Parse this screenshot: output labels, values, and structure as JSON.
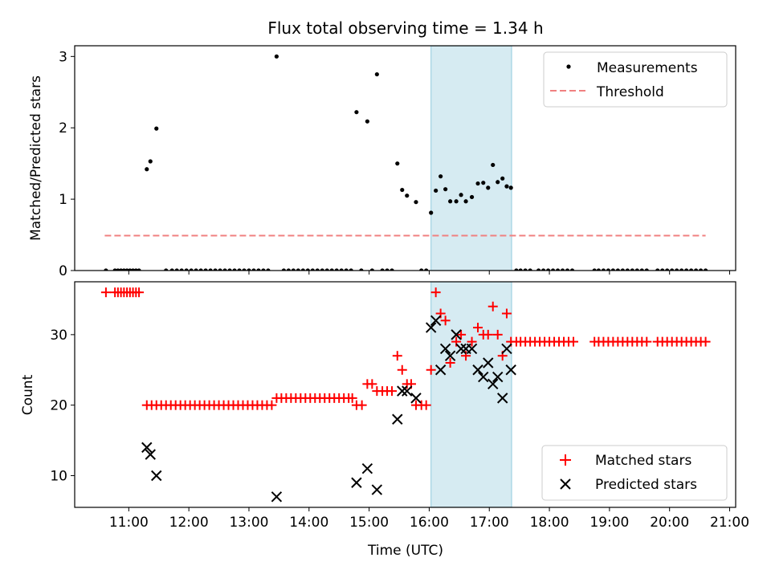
{
  "title": "Flux total observing time = 1.34 h",
  "xlabel": "Time (UTC)",
  "xticks": [
    "11:00",
    "12:00",
    "13:00",
    "14:00",
    "15:00",
    "16:00",
    "17:00",
    "18:00",
    "19:00",
    "20:00",
    "21:00"
  ],
  "chart_data": [
    {
      "type": "scatter",
      "ylabel": "Matched/Predicted stars",
      "ylim": [
        0,
        3.15
      ],
      "yticks": [
        0,
        1,
        2,
        3
      ],
      "xlim": [
        10.1,
        21.1
      ],
      "shaded_interval": [
        16.03,
        17.37
      ],
      "threshold": {
        "name": "Threshold",
        "value": 0.49,
        "x": [
          10.6,
          20.6
        ],
        "color": "#f08080"
      },
      "series": [
        {
          "name": "Measurements",
          "color": "#000000",
          "marker": "dot",
          "points": [
            [
              10.62,
              0
            ],
            [
              10.77,
              0
            ],
            [
              10.82,
              0
            ],
            [
              10.87,
              0
            ],
            [
              10.92,
              0
            ],
            [
              10.97,
              0
            ],
            [
              11.02,
              0
            ],
            [
              11.07,
              0
            ],
            [
              11.12,
              0
            ],
            [
              11.17,
              0
            ],
            [
              11.3,
              1.42
            ],
            [
              11.36,
              1.53
            ],
            [
              11.46,
              1.99
            ],
            [
              11.62,
              0
            ],
            [
              11.72,
              0
            ],
            [
              11.8,
              0
            ],
            [
              11.88,
              0
            ],
            [
              11.96,
              0
            ],
            [
              12.04,
              0
            ],
            [
              12.12,
              0
            ],
            [
              12.2,
              0
            ],
            [
              12.28,
              0
            ],
            [
              12.36,
              0
            ],
            [
              12.44,
              0
            ],
            [
              12.52,
              0
            ],
            [
              12.6,
              0
            ],
            [
              12.68,
              0
            ],
            [
              12.76,
              0
            ],
            [
              12.84,
              0
            ],
            [
              12.92,
              0
            ],
            [
              13.0,
              0
            ],
            [
              13.08,
              0
            ],
            [
              13.16,
              0
            ],
            [
              13.24,
              0
            ],
            [
              13.32,
              0
            ],
            [
              13.46,
              3.0
            ],
            [
              13.58,
              0
            ],
            [
              13.66,
              0
            ],
            [
              13.74,
              0
            ],
            [
              13.82,
              0
            ],
            [
              13.9,
              0
            ],
            [
              13.98,
              0
            ],
            [
              14.06,
              0
            ],
            [
              14.14,
              0
            ],
            [
              14.22,
              0
            ],
            [
              14.3,
              0
            ],
            [
              14.38,
              0
            ],
            [
              14.46,
              0
            ],
            [
              14.54,
              0
            ],
            [
              14.62,
              0
            ],
            [
              14.7,
              0
            ],
            [
              14.79,
              2.22
            ],
            [
              14.87,
              0
            ],
            [
              14.97,
              2.09
            ],
            [
              15.05,
              0
            ],
            [
              15.13,
              2.75
            ],
            [
              15.22,
              0
            ],
            [
              15.3,
              0
            ],
            [
              15.38,
              0
            ],
            [
              15.47,
              1.5
            ],
            [
              15.55,
              1.13
            ],
            [
              15.63,
              1.05
            ],
            [
              15.78,
              0.96
            ],
            [
              15.87,
              0
            ],
            [
              15.95,
              0
            ],
            [
              16.03,
              0.81
            ],
            [
              16.11,
              1.12
            ],
            [
              16.19,
              1.32
            ],
            [
              16.27,
              1.14
            ],
            [
              16.35,
              0.97
            ],
            [
              16.45,
              0.97
            ],
            [
              16.53,
              1.06
            ],
            [
              16.61,
              0.97
            ],
            [
              16.71,
              1.03
            ],
            [
              16.81,
              1.22
            ],
            [
              16.9,
              1.23
            ],
            [
              16.98,
              1.16
            ],
            [
              17.06,
              1.48
            ],
            [
              17.14,
              1.24
            ],
            [
              17.22,
              1.29
            ],
            [
              17.29,
              1.18
            ],
            [
              17.36,
              1.16
            ],
            [
              17.45,
              0
            ],
            [
              17.52,
              0
            ],
            [
              17.6,
              0
            ],
            [
              17.68,
              0
            ],
            [
              17.82,
              0
            ],
            [
              17.9,
              0
            ],
            [
              17.98,
              0
            ],
            [
              18.06,
              0
            ],
            [
              18.14,
              0
            ],
            [
              18.22,
              0
            ],
            [
              18.3,
              0
            ],
            [
              18.38,
              0
            ],
            [
              18.75,
              0
            ],
            [
              18.82,
              0
            ],
            [
              18.9,
              0
            ],
            [
              18.98,
              0
            ],
            [
              19.06,
              0
            ],
            [
              19.14,
              0
            ],
            [
              19.22,
              0
            ],
            [
              19.3,
              0
            ],
            [
              19.38,
              0
            ],
            [
              19.46,
              0
            ],
            [
              19.54,
              0
            ],
            [
              19.62,
              0
            ],
            [
              19.8,
              0
            ],
            [
              19.88,
              0
            ],
            [
              19.96,
              0
            ],
            [
              20.04,
              0
            ],
            [
              20.12,
              0
            ],
            [
              20.2,
              0
            ],
            [
              20.28,
              0
            ],
            [
              20.36,
              0
            ],
            [
              20.44,
              0
            ],
            [
              20.52,
              0
            ],
            [
              20.6,
              0
            ]
          ]
        }
      ],
      "legend": "upper right",
      "grid": false
    },
    {
      "type": "scatter",
      "ylabel": "Count",
      "ylim": [
        5.5,
        37.5
      ],
      "yticks": [
        10,
        20,
        30
      ],
      "xlim": [
        10.1,
        21.1
      ],
      "shaded_interval": [
        16.03,
        17.37
      ],
      "legend": "lower right",
      "grid": false,
      "series": [
        {
          "name": "Matched stars",
          "color": "#ff0000",
          "marker": "plus",
          "points": [
            [
              10.62,
              36
            ],
            [
              10.77,
              36
            ],
            [
              10.82,
              36
            ],
            [
              10.87,
              36
            ],
            [
              10.92,
              36
            ],
            [
              10.97,
              36
            ],
            [
              11.02,
              36
            ],
            [
              11.07,
              36
            ],
            [
              11.12,
              36
            ],
            [
              11.17,
              36
            ],
            [
              11.3,
              20
            ],
            [
              11.38,
              20
            ],
            [
              11.46,
              20
            ],
            [
              11.54,
              20
            ],
            [
              11.62,
              20
            ],
            [
              11.7,
              20
            ],
            [
              11.78,
              20
            ],
            [
              11.86,
              20
            ],
            [
              11.94,
              20
            ],
            [
              12.02,
              20
            ],
            [
              12.1,
              20
            ],
            [
              12.18,
              20
            ],
            [
              12.26,
              20
            ],
            [
              12.34,
              20
            ],
            [
              12.42,
              20
            ],
            [
              12.5,
              20
            ],
            [
              12.58,
              20
            ],
            [
              12.66,
              20
            ],
            [
              12.74,
              20
            ],
            [
              12.82,
              20
            ],
            [
              12.9,
              20
            ],
            [
              12.98,
              20
            ],
            [
              13.06,
              20
            ],
            [
              13.14,
              20
            ],
            [
              13.22,
              20
            ],
            [
              13.3,
              20
            ],
            [
              13.38,
              20
            ],
            [
              13.46,
              21
            ],
            [
              13.54,
              21
            ],
            [
              13.62,
              21
            ],
            [
              13.7,
              21
            ],
            [
              13.78,
              21
            ],
            [
              13.86,
              21
            ],
            [
              13.94,
              21
            ],
            [
              14.02,
              21
            ],
            [
              14.1,
              21
            ],
            [
              14.18,
              21
            ],
            [
              14.26,
              21
            ],
            [
              14.34,
              21
            ],
            [
              14.42,
              21
            ],
            [
              14.5,
              21
            ],
            [
              14.58,
              21
            ],
            [
              14.66,
              21
            ],
            [
              14.72,
              21
            ],
            [
              14.79,
              20
            ],
            [
              14.88,
              20
            ],
            [
              14.97,
              23
            ],
            [
              15.05,
              23
            ],
            [
              15.13,
              22
            ],
            [
              15.22,
              22
            ],
            [
              15.3,
              22
            ],
            [
              15.38,
              22
            ],
            [
              15.47,
              27
            ],
            [
              15.55,
              25
            ],
            [
              15.63,
              23
            ],
            [
              15.7,
              23
            ],
            [
              15.78,
              20
            ],
            [
              15.87,
              20
            ],
            [
              15.95,
              20
            ],
            [
              16.03,
              25
            ],
            [
              16.11,
              36
            ],
            [
              16.19,
              33
            ],
            [
              16.27,
              32
            ],
            [
              16.35,
              26
            ],
            [
              16.45,
              29
            ],
            [
              16.53,
              30
            ],
            [
              16.61,
              27
            ],
            [
              16.71,
              29
            ],
            [
              16.81,
              31
            ],
            [
              16.9,
              30
            ],
            [
              16.98,
              30
            ],
            [
              17.06,
              34
            ],
            [
              17.14,
              30
            ],
            [
              17.22,
              27
            ],
            [
              17.29,
              33
            ],
            [
              17.36,
              29
            ],
            [
              17.45,
              29
            ],
            [
              17.52,
              29
            ],
            [
              17.6,
              29
            ],
            [
              17.68,
              29
            ],
            [
              17.76,
              29
            ],
            [
              17.84,
              29
            ],
            [
              17.92,
              29
            ],
            [
              18.0,
              29
            ],
            [
              18.08,
              29
            ],
            [
              18.16,
              29
            ],
            [
              18.24,
              29
            ],
            [
              18.32,
              29
            ],
            [
              18.4,
              29
            ],
            [
              18.75,
              29
            ],
            [
              18.82,
              29
            ],
            [
              18.9,
              29
            ],
            [
              18.98,
              29
            ],
            [
              19.06,
              29
            ],
            [
              19.14,
              29
            ],
            [
              19.22,
              29
            ],
            [
              19.3,
              29
            ],
            [
              19.38,
              29
            ],
            [
              19.46,
              29
            ],
            [
              19.54,
              29
            ],
            [
              19.62,
              29
            ],
            [
              19.8,
              29
            ],
            [
              19.88,
              29
            ],
            [
              19.96,
              29
            ],
            [
              20.04,
              29
            ],
            [
              20.12,
              29
            ],
            [
              20.2,
              29
            ],
            [
              20.28,
              29
            ],
            [
              20.36,
              29
            ],
            [
              20.44,
              29
            ],
            [
              20.52,
              29
            ],
            [
              20.6,
              29
            ]
          ]
        },
        {
          "name": "Predicted stars",
          "color": "#000000",
          "marker": "x",
          "points": [
            [
              11.3,
              14
            ],
            [
              11.36,
              13
            ],
            [
              11.46,
              10
            ],
            [
              13.46,
              7
            ],
            [
              14.79,
              9
            ],
            [
              14.97,
              11
            ],
            [
              15.13,
              8
            ],
            [
              15.47,
              18
            ],
            [
              15.55,
              22
            ],
            [
              15.63,
              22
            ],
            [
              15.78,
              21
            ],
            [
              16.03,
              31
            ],
            [
              16.11,
              32
            ],
            [
              16.19,
              25
            ],
            [
              16.27,
              28
            ],
            [
              16.35,
              27
            ],
            [
              16.45,
              30
            ],
            [
              16.53,
              28
            ],
            [
              16.61,
              28
            ],
            [
              16.71,
              28
            ],
            [
              16.81,
              25
            ],
            [
              16.9,
              24
            ],
            [
              16.98,
              26
            ],
            [
              17.06,
              23
            ],
            [
              17.14,
              24
            ],
            [
              17.22,
              21
            ],
            [
              17.29,
              28
            ],
            [
              17.36,
              25
            ]
          ]
        }
      ]
    }
  ]
}
